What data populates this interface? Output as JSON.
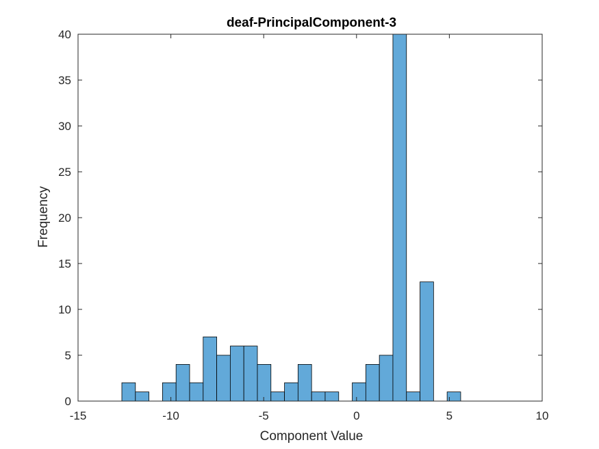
{
  "chart_data": {
    "type": "histogram",
    "title": "deaf-PrincipalComponent-3",
    "xlabel": "Component Value",
    "ylabel": "Frequency",
    "xlim": [
      -15,
      10
    ],
    "ylim": [
      0,
      40
    ],
    "xticks": [
      -15,
      -10,
      -5,
      0,
      5,
      10
    ],
    "yticks": [
      0,
      5,
      10,
      15,
      20,
      25,
      30,
      35,
      40
    ],
    "grid": false,
    "legend": "none",
    "bar_color": "#62a9d9",
    "bar_edge_color": "#000000",
    "bin_width": 0.73,
    "bins": [
      {
        "x_start": -12.64,
        "count": 2
      },
      {
        "x_start": -11.91,
        "count": 1
      },
      {
        "x_start": -11.18,
        "count": 0
      },
      {
        "x_start": -10.45,
        "count": 2
      },
      {
        "x_start": -9.72,
        "count": 4
      },
      {
        "x_start": -8.99,
        "count": 2
      },
      {
        "x_start": -8.26,
        "count": 7
      },
      {
        "x_start": -7.53,
        "count": 5
      },
      {
        "x_start": -6.8,
        "count": 6
      },
      {
        "x_start": -6.07,
        "count": 6
      },
      {
        "x_start": -5.34,
        "count": 4
      },
      {
        "x_start": -4.61,
        "count": 1
      },
      {
        "x_start": -3.88,
        "count": 2
      },
      {
        "x_start": -3.15,
        "count": 4
      },
      {
        "x_start": -2.42,
        "count": 1
      },
      {
        "x_start": -1.69,
        "count": 1
      },
      {
        "x_start": -0.96,
        "count": 0
      },
      {
        "x_start": -0.23,
        "count": 2
      },
      {
        "x_start": 0.5,
        "count": 4
      },
      {
        "x_start": 1.23,
        "count": 5
      },
      {
        "x_start": 1.96,
        "count": 40
      },
      {
        "x_start": 2.69,
        "count": 1
      },
      {
        "x_start": 3.42,
        "count": 13
      },
      {
        "x_start": 4.15,
        "count": 0
      },
      {
        "x_start": 4.88,
        "count": 1
      }
    ]
  }
}
